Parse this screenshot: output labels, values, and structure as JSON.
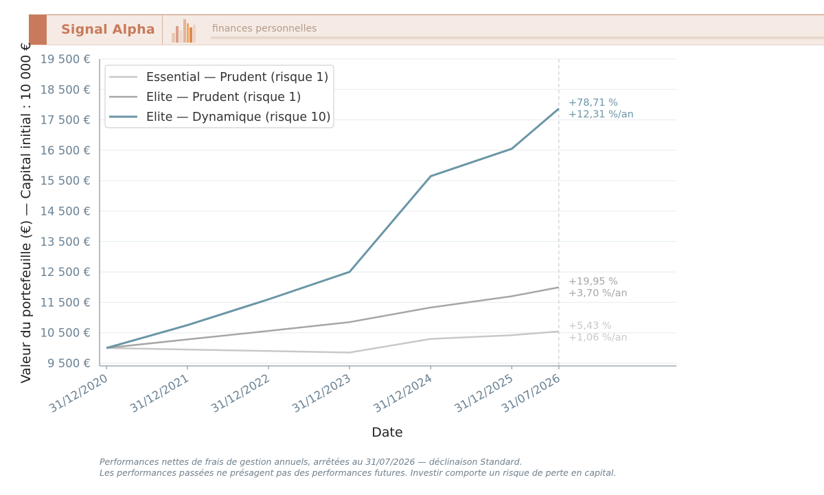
{
  "header": {
    "brand": "Signal Alpha",
    "tagline": "finances personnelles"
  },
  "colors": {
    "accent": "#c97a5c",
    "series_essential": "#c8c8c8",
    "series_elite_prudent": "#a6a6a6",
    "series_elite_dynamique": "#6a96a6",
    "axis_text": "#6a8294"
  },
  "chart_data": {
    "type": "line",
    "ylabel": "Valeur du portefeuille (€) — Capital initial : 10 000 €",
    "xlabel": "Date",
    "x": [
      "31/12/2020",
      "31/12/2021",
      "31/12/2022",
      "31/12/2023",
      "31/12/2024",
      "31/12/2025",
      "31/07/2026"
    ],
    "yticks": [
      "9 500 €",
      "10 500 €",
      "11 500 €",
      "12 500 €",
      "13 500 €",
      "14 500 €",
      "15 500 €",
      "16 500 €",
      "17 500 €",
      "18 500 €",
      "19 500 €"
    ],
    "ylim": [
      9500,
      19500
    ],
    "grid": true,
    "legend_position": "top-left",
    "reference_line": "31/07/2026",
    "series": [
      {
        "name": "Essential — Prudent (risque 1)",
        "values": [
          10000,
          9950,
          9900,
          9850,
          10300,
          10420,
          10543
        ],
        "annotation": [
          "+5,43 %",
          "+1,06 %/an"
        ]
      },
      {
        "name": "Elite — Prudent (risque 1)",
        "values": [
          10000,
          10280,
          10560,
          10850,
          11330,
          11700,
          11995
        ],
        "annotation": [
          "+19,95 %",
          "+3,70 %/an"
        ]
      },
      {
        "name": "Elite — Dynamique (risque 10)",
        "values": [
          10000,
          10750,
          11600,
          12500,
          15650,
          16550,
          17871
        ],
        "annotation": [
          "+78,71 %",
          "+12,31 %/an"
        ]
      }
    ]
  },
  "footnote": {
    "line1": "Performances nettes de frais de gestion annuels, arrêtées au 31/07/2026 — déclinaison Standard.",
    "line2": "Les performances passées ne présagent pas des performances futures. Investir comporte un risque de perte en capital."
  }
}
